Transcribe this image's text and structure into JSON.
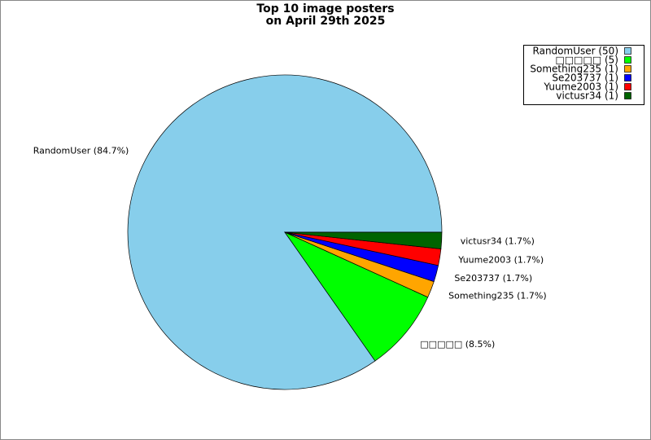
{
  "chart_data": {
    "type": "pie",
    "title": [
      "Top 10 image posters",
      "on April 29th 2025"
    ],
    "categories": [
      "RandomUser",
      "□□□□□",
      "Something235",
      "Se203737",
      "Yuume2003",
      "victusr34"
    ],
    "values": [
      50,
      5,
      1,
      1,
      1,
      1
    ],
    "value_labels": [
      "RandomUser (50)",
      "□□□□□ (5)",
      "Something235 (1)",
      "Se203737 (1)",
      "Yuume2003 (1)",
      "victusr34 (1)"
    ],
    "slice_labels": [
      "RandomUser (84.7%)",
      "□□□□□ (8.5%)",
      "Something235 (1.7%)",
      "Se203737 (1.7%)",
      "Yuume2003 (1.7%)",
      "victusr34 (1.7%)"
    ],
    "colors": [
      "#87ceeb",
      "#00ff00",
      "#ffa500",
      "#0000ff",
      "#ff0000",
      "#006400"
    ],
    "legend": "upper right"
  }
}
